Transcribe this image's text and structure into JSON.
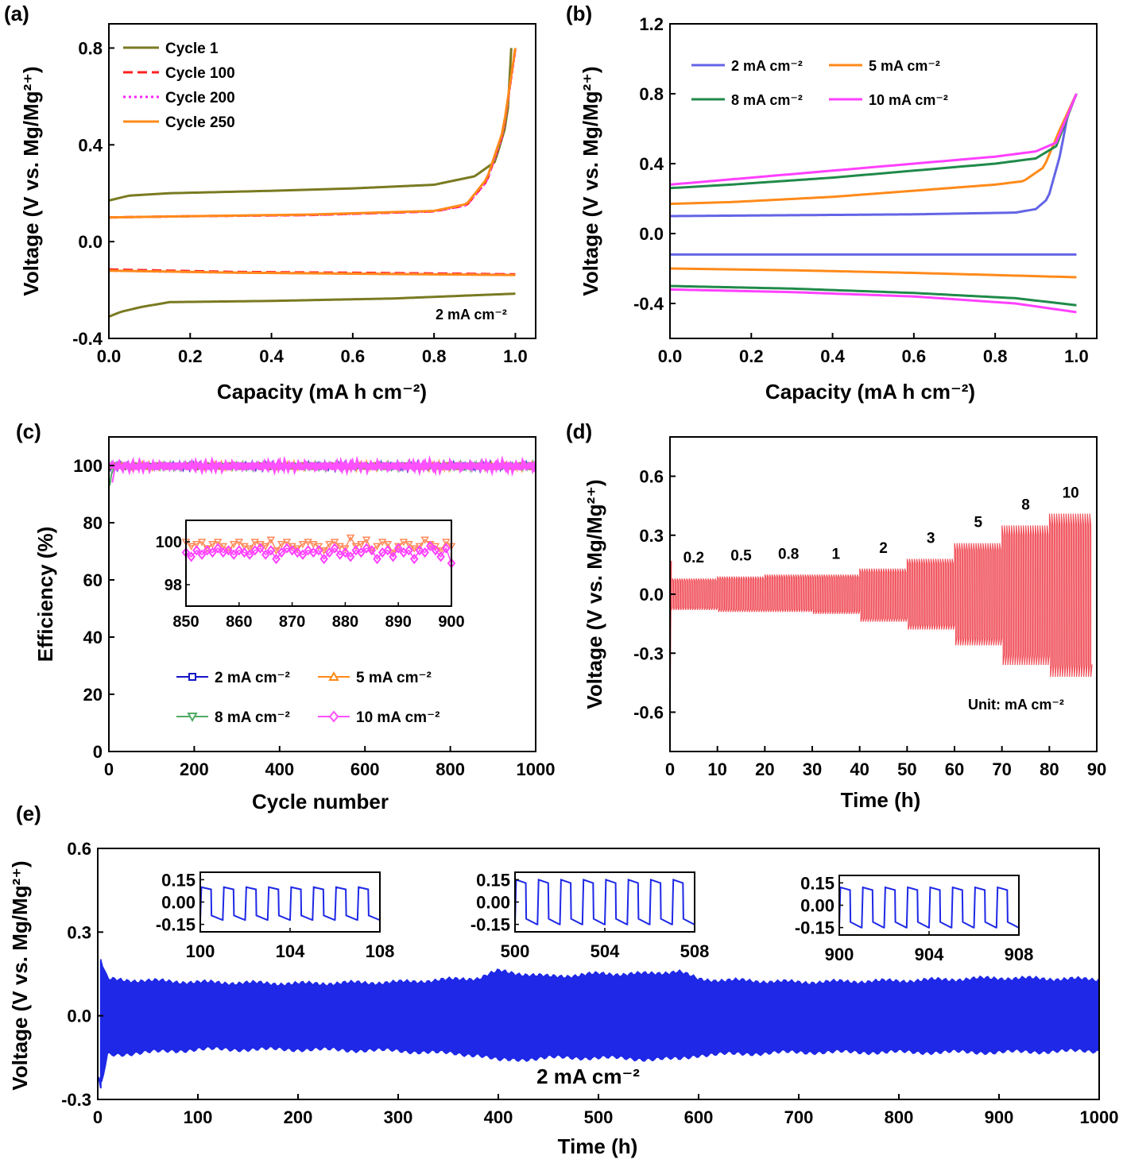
{
  "chart_data": [
    {
      "panel": "(a)",
      "type": "line",
      "xlabel": "Capacity (mA h cm⁻²)",
      "ylabel": "Voltage (V vs. Mg/Mg²⁺)",
      "xlim": [
        0,
        1.05
      ],
      "ylim": [
        -0.4,
        0.9
      ],
      "xticks": [
        "0.0",
        "0.2",
        "0.4",
        "0.6",
        "0.8",
        "1.0"
      ],
      "yticks": [
        "-0.4",
        "0.0",
        "0.4",
        "0.8"
      ],
      "annotation": "2 mA cm⁻²",
      "legend_position": "top-left",
      "series": [
        {
          "name": "Cycle 1",
          "color": "#7a7a22",
          "dash": "solid",
          "charge": [
            [
              0,
              0.17
            ],
            [
              0.05,
              0.19
            ],
            [
              0.15,
              0.2
            ],
            [
              0.4,
              0.21
            ],
            [
              0.6,
              0.22
            ],
            [
              0.8,
              0.235
            ],
            [
              0.9,
              0.27
            ],
            [
              0.95,
              0.33
            ],
            [
              0.98,
              0.5
            ],
            [
              0.99,
              0.8
            ]
          ],
          "discharge": [
            [
              0,
              -0.31
            ],
            [
              0.03,
              -0.29
            ],
            [
              0.08,
              -0.27
            ],
            [
              0.15,
              -0.25
            ],
            [
              0.4,
              -0.245
            ],
            [
              0.7,
              -0.235
            ],
            [
              1.0,
              -0.215
            ]
          ]
        },
        {
          "name": "Cycle 100",
          "color": "#ff2020",
          "dash": "dash",
          "charge": [
            [
              0,
              0.1
            ],
            [
              0.2,
              0.105
            ],
            [
              0.5,
              0.11
            ],
            [
              0.8,
              0.125
            ],
            [
              0.88,
              0.15
            ],
            [
              0.93,
              0.25
            ],
            [
              0.97,
              0.45
            ],
            [
              1.0,
              0.8
            ]
          ],
          "discharge": [
            [
              0,
              -0.115
            ],
            [
              0.3,
              -0.125
            ],
            [
              0.7,
              -0.13
            ],
            [
              1.0,
              -0.135
            ]
          ]
        },
        {
          "name": "Cycle 200",
          "color": "#ff20ff",
          "dash": "dot",
          "charge": [
            [
              0,
              0.1
            ],
            [
              0.2,
              0.105
            ],
            [
              0.5,
              0.11
            ],
            [
              0.8,
              0.125
            ],
            [
              0.88,
              0.15
            ],
            [
              0.93,
              0.25
            ],
            [
              0.97,
              0.45
            ],
            [
              1.0,
              0.79
            ]
          ],
          "discharge": [
            [
              0,
              -0.12
            ],
            [
              0.3,
              -0.128
            ],
            [
              0.7,
              -0.133
            ],
            [
              1.0,
              -0.137
            ]
          ]
        },
        {
          "name": "Cycle 250",
          "color": "#ff8a1a",
          "dash": "solid",
          "charge": [
            [
              0,
              0.1
            ],
            [
              0.2,
              0.105
            ],
            [
              0.5,
              0.112
            ],
            [
              0.8,
              0.127
            ],
            [
              0.88,
              0.155
            ],
            [
              0.93,
              0.26
            ],
            [
              0.97,
              0.46
            ],
            [
              1.0,
              0.8
            ]
          ],
          "discharge": [
            [
              0,
              -0.12
            ],
            [
              0.3,
              -0.128
            ],
            [
              0.7,
              -0.134
            ],
            [
              1.0,
              -0.138
            ]
          ]
        }
      ]
    },
    {
      "panel": "(b)",
      "type": "line",
      "xlabel": "Capacity (mA h cm⁻²)",
      "ylabel": "Voltage (V vs. Mg/Mg²⁺)",
      "xlim": [
        0,
        1.05
      ],
      "ylim": [
        -0.6,
        1.2
      ],
      "xticks": [
        "0.0",
        "0.2",
        "0.4",
        "0.6",
        "0.8",
        "1.0"
      ],
      "yticks": [
        "-0.4",
        "0.0",
        "0.4",
        "0.8",
        "1.2"
      ],
      "legend_position": "top",
      "series": [
        {
          "name": "2 mA cm⁻²",
          "color": "#6464e6",
          "charge": [
            [
              0,
              0.1
            ],
            [
              0.3,
              0.105
            ],
            [
              0.6,
              0.11
            ],
            [
              0.85,
              0.12
            ],
            [
              0.9,
              0.14
            ],
            [
              0.93,
              0.2
            ],
            [
              0.96,
              0.45
            ],
            [
              0.98,
              0.7
            ],
            [
              1.0,
              0.8
            ]
          ],
          "discharge": [
            [
              0,
              -0.12
            ],
            [
              0.5,
              -0.12
            ],
            [
              1.0,
              -0.12
            ]
          ]
        },
        {
          "name": "5 mA cm⁻²",
          "color": "#ff8a1a",
          "charge": [
            [
              0,
              0.17
            ],
            [
              0.15,
              0.18
            ],
            [
              0.4,
              0.21
            ],
            [
              0.6,
              0.245
            ],
            [
              0.8,
              0.28
            ],
            [
              0.87,
              0.3
            ],
            [
              0.92,
              0.38
            ],
            [
              0.96,
              0.6
            ],
            [
              1.0,
              0.8
            ]
          ],
          "discharge": [
            [
              0,
              -0.2
            ],
            [
              0.3,
              -0.21
            ],
            [
              0.6,
              -0.225
            ],
            [
              1.0,
              -0.25
            ]
          ]
        },
        {
          "name": "8 mA cm⁻²",
          "color": "#208a4a",
          "charge": [
            [
              0,
              0.26
            ],
            [
              0.15,
              0.28
            ],
            [
              0.4,
              0.32
            ],
            [
              0.6,
              0.36
            ],
            [
              0.8,
              0.4
            ],
            [
              0.9,
              0.43
            ],
            [
              0.95,
              0.5
            ],
            [
              1.0,
              0.8
            ]
          ],
          "discharge": [
            [
              0,
              -0.3
            ],
            [
              0.3,
              -0.315
            ],
            [
              0.6,
              -0.34
            ],
            [
              0.85,
              -0.37
            ],
            [
              1.0,
              -0.41
            ]
          ]
        },
        {
          "name": "10 mA cm⁻²",
          "color": "#ff40ff",
          "charge": [
            [
              0,
              0.28
            ],
            [
              0.2,
              0.32
            ],
            [
              0.5,
              0.38
            ],
            [
              0.8,
              0.44
            ],
            [
              0.9,
              0.47
            ],
            [
              0.95,
              0.52
            ],
            [
              1.0,
              0.8
            ]
          ],
          "discharge": [
            [
              0,
              -0.32
            ],
            [
              0.3,
              -0.335
            ],
            [
              0.6,
              -0.36
            ],
            [
              0.85,
              -0.4
            ],
            [
              1.0,
              -0.45
            ]
          ]
        }
      ]
    },
    {
      "panel": "(c)",
      "type": "scatter",
      "xlabel": "Cycle number",
      "ylabel": "Efficiency (%)",
      "xlim": [
        0,
        1000
      ],
      "ylim": [
        0,
        110
      ],
      "xticks": [
        "0",
        "200",
        "400",
        "600",
        "800",
        "1000"
      ],
      "yticks": [
        "0",
        "20",
        "40",
        "60",
        "80",
        "100"
      ],
      "legend_position": "bottom",
      "series": [
        {
          "name": "2 mA cm⁻²",
          "color": "#1414c8",
          "marker": "square"
        },
        {
          "name": "5 mA cm⁻²",
          "color": "#ff8a1a",
          "marker": "triangle-up"
        },
        {
          "name": "8 mA cm⁻²",
          "color": "#50aa64",
          "marker": "triangle-down"
        },
        {
          "name": "10 mA cm⁻²",
          "color": "#ff50ff",
          "marker": "diamond"
        }
      ],
      "main_level": 99.8,
      "inset": {
        "xlim": [
          850,
          900
        ],
        "ylim": [
          97,
          101
        ],
        "xticks": [
          "850",
          "860",
          "870",
          "880",
          "890",
          "900"
        ],
        "yticks": [
          "98",
          "100"
        ],
        "series": [
          {
            "name": "8 mA cm⁻²",
            "color": "#ff8a5a",
            "values": [
              100.0,
              99.8,
              99.9,
              100.0,
              99.7,
              99.9,
              100.0,
              99.8,
              99.6,
              99.9,
              100.0,
              99.8,
              99.7,
              100.0,
              99.9,
              99.8,
              100.1,
              99.6,
              99.9,
              100.0,
              99.8,
              99.7,
              99.9,
              100.0,
              99.9,
              99.8,
              99.6,
              99.9,
              100.0,
              99.8,
              99.7,
              100.2,
              99.8,
              99.9,
              100.1,
              99.6,
              99.8,
              100.0,
              99.9,
              99.5,
              99.8,
              100.0,
              99.9,
              99.7,
              99.8,
              100.1,
              99.9,
              99.8,
              99.6,
              100.0,
              99.8
            ]
          },
          {
            "name": "10 mA cm⁻²",
            "color": "#ff40ff",
            "values": [
              99.5,
              99.3,
              99.6,
              99.4,
              99.6,
              99.5,
              99.7,
              99.5,
              99.6,
              99.4,
              99.6,
              99.5,
              99.4,
              99.6,
              99.7,
              99.4,
              99.6,
              99.2,
              99.5,
              99.7,
              99.6,
              99.5,
              99.4,
              99.6,
              99.5,
              99.6,
              99.2,
              99.5,
              99.7,
              99.4,
              99.5,
              99.3,
              99.6,
              99.5,
              99.7,
              99.6,
              99.2,
              99.5,
              99.6,
              99.3,
              99.7,
              99.5,
              99.6,
              99.2,
              99.6,
              99.5,
              99.8,
              99.6,
              99.3,
              99.7,
              99.0
            ]
          }
        ]
      }
    },
    {
      "panel": "(d)",
      "type": "line",
      "xlabel": "Time (h)",
      "ylabel": "Voltage (V vs. Mg/Mg²⁺)",
      "xlim": [
        0,
        90
      ],
      "ylim": [
        -0.8,
        0.8
      ],
      "xticks": [
        "0",
        "10",
        "20",
        "30",
        "40",
        "50",
        "60",
        "70",
        "80",
        "90"
      ],
      "yticks": [
        "-0.6",
        "-0.3",
        "0.0",
        "0.3",
        "0.6"
      ],
      "color": "#f0505a",
      "annotation": "Unit: mA cm⁻²",
      "segments": [
        {
          "label": "0.2",
          "t0": 0,
          "t1": 10,
          "top": 0.08,
          "bottom": -0.08
        },
        {
          "label": "0.5",
          "t0": 10,
          "t1": 20,
          "top": 0.09,
          "bottom": -0.09
        },
        {
          "label": "0.8",
          "t0": 20,
          "t1": 30,
          "top": 0.1,
          "bottom": -0.09
        },
        {
          "label": "1",
          "t0": 30,
          "t1": 40,
          "top": 0.1,
          "bottom": -0.1
        },
        {
          "label": "2",
          "t0": 40,
          "t1": 50,
          "top": 0.13,
          "bottom": -0.14
        },
        {
          "label": "3",
          "t0": 50,
          "t1": 60,
          "top": 0.18,
          "bottom": -0.18
        },
        {
          "label": "5",
          "t0": 60,
          "t1": 70,
          "top": 0.26,
          "bottom": -0.26
        },
        {
          "label": "8",
          "t0": 70,
          "t1": 80,
          "top": 0.35,
          "bottom": -0.36
        },
        {
          "label": "10",
          "t0": 80,
          "t1": 89,
          "top": 0.41,
          "bottom": -0.42
        }
      ]
    },
    {
      "panel": "(e)",
      "type": "line",
      "xlabel": "Time (h)",
      "ylabel": "Voltage (V vs. Mg/Mg²⁺)",
      "xlim": [
        0,
        1000
      ],
      "ylim": [
        -0.3,
        0.6
      ],
      "xticks": [
        "0",
        "100",
        "200",
        "300",
        "400",
        "500",
        "600",
        "700",
        "800",
        "900",
        "1000"
      ],
      "yticks": [
        "-0.3",
        "0.0",
        "0.3",
        "0.6"
      ],
      "color": "#1e28e6",
      "annotation": "2 mA cm⁻²",
      "envelope": [
        [
          3,
          0.2,
          -0.26
        ],
        [
          10,
          0.13,
          -0.14
        ],
        [
          100,
          0.12,
          -0.12
        ],
        [
          200,
          0.115,
          -0.12
        ],
        [
          300,
          0.12,
          -0.125
        ],
        [
          380,
          0.135,
          -0.14
        ],
        [
          400,
          0.16,
          -0.16
        ],
        [
          450,
          0.14,
          -0.15
        ],
        [
          500,
          0.15,
          -0.15
        ],
        [
          550,
          0.15,
          -0.155
        ],
        [
          580,
          0.16,
          -0.155
        ],
        [
          600,
          0.13,
          -0.14
        ],
        [
          700,
          0.12,
          -0.13
        ],
        [
          800,
          0.125,
          -0.13
        ],
        [
          900,
          0.135,
          -0.13
        ],
        [
          1000,
          0.13,
          -0.125
        ]
      ],
      "insets": [
        {
          "xlim": [
            100,
            108
          ],
          "xticks": [
            "100",
            "104",
            "108"
          ],
          "yticks": [
            "0.15",
            "0.00",
            "-0.15"
          ],
          "ylim": [
            -0.2,
            0.2
          ],
          "amp_top": 0.1,
          "amp_bottom": -0.12
        },
        {
          "xlim": [
            500,
            508
          ],
          "xticks": [
            "500",
            "504",
            "508"
          ],
          "yticks": [
            "0.15",
            "0.00",
            "-0.15"
          ],
          "ylim": [
            -0.2,
            0.2
          ],
          "amp_top": 0.15,
          "amp_bottom": -0.15
        },
        {
          "xlim": [
            900,
            908
          ],
          "xticks": [
            "900",
            "904",
            "908"
          ],
          "yticks": [
            "0.15",
            "0.00",
            "-0.15"
          ],
          "ylim": [
            -0.2,
            0.2
          ],
          "amp_top": 0.12,
          "amp_bottom": -0.15
        }
      ]
    }
  ]
}
